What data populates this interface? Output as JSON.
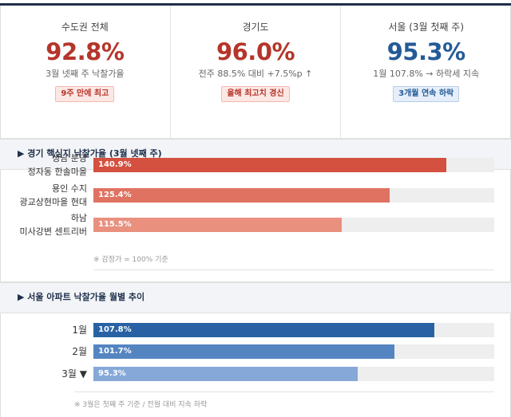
{
  "stats": [
    {
      "label": "수도권 전체",
      "value": "92.8%",
      "sub": "3월 넷째 주 낙찰가율",
      "badge": "9주 만에 최고",
      "color": "#b5352a"
    },
    {
      "label": "경기도",
      "value": "96.0%",
      "sub": "전주 88.5% 대비 +7.5%p ↑",
      "badge": "올해 최고치 경신",
      "color": "#b5352a"
    },
    {
      "label": "서울 (3월 첫째 주)",
      "value": "95.3%",
      "sub": "1월 107.8% → 하락세 지속",
      "badge": "3개월 연속 하락",
      "color": "#245b96"
    }
  ],
  "gyeonggi": {
    "title": "▶ 경기 핵심지 낙찰가율 (3월 넷째 주)",
    "rows": [
      {
        "line1": "성남 분당",
        "line2": "정자동 한솔마을",
        "value": "140.9%",
        "fill": 0.88,
        "color": "#d4503f"
      },
      {
        "line1": "용인 수지",
        "line2": "광교상현마을 현대",
        "value": "125.4%",
        "fill": 0.74,
        "color": "#e07262"
      },
      {
        "line1": "하남",
        "line2": "미사강변 센트리버",
        "value": "115.5%",
        "fill": 0.62,
        "color": "#e9907f"
      }
    ],
    "note": "※ 감정가 = 100% 기준"
  },
  "seoul": {
    "title": "▶ 서울 아파트 낙찰가율 월별 추이",
    "rows": [
      {
        "label": "1월",
        "value": "107.8%",
        "fill": 0.85,
        "color": "#2862a4"
      },
      {
        "label": "2월",
        "value": "101.7%",
        "fill": 0.75,
        "color": "#5585c1"
      },
      {
        "label": "3월 ▼",
        "value": "95.3%",
        "fill": 0.66,
        "color": "#85a8d8"
      }
    ],
    "note": "※ 3월은 첫째 주 기준 / 전월 대비 지속 하락"
  }
}
